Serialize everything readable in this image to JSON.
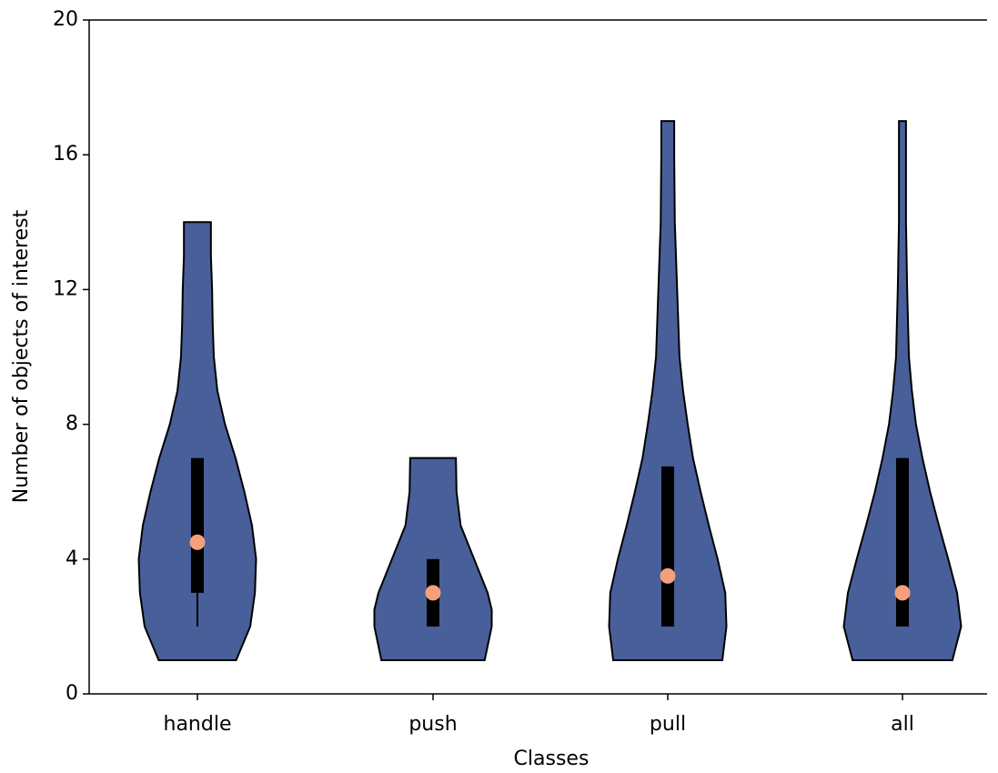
{
  "chart_data": {
    "type": "violin",
    "xlabel": "Classes",
    "ylabel": "Number of objects of interest",
    "categories": [
      "handle",
      "push",
      "pull",
      "all"
    ],
    "ylim": [
      0,
      20
    ],
    "yticks": [
      0,
      4,
      8,
      12,
      16,
      20
    ],
    "color": "#485f99",
    "median_color": "#f5a07a",
    "series": [
      {
        "min": 1,
        "max": 14,
        "q1": 3,
        "q3": 7,
        "median": 4.5,
        "whisker_low": 2,
        "whisker_high": 7,
        "density_y": [
          1,
          2,
          3,
          4,
          5,
          6,
          7,
          8,
          9,
          10,
          11,
          12,
          13,
          14
        ],
        "density": [
          0.66,
          0.9,
          0.98,
          1,
          0.93,
          0.8,
          0.65,
          0.47,
          0.34,
          0.28,
          0.26,
          0.25,
          0.23,
          0.23
        ]
      },
      {
        "min": 1,
        "max": 7,
        "q1": 2,
        "q3": 4,
        "median": 3,
        "whisker_low": 2,
        "whisker_high": 4,
        "density_y": [
          1,
          2,
          2.5,
          3,
          4,
          5,
          6,
          7
        ],
        "density": [
          0.88,
          1,
          1,
          0.93,
          0.7,
          0.47,
          0.4,
          0.39
        ]
      },
      {
        "min": 1,
        "max": 17,
        "q1": 2,
        "q3": 6.75,
        "median": 3.5,
        "whisker_low": 2,
        "whisker_high": 6.75,
        "density_y": [
          1,
          2,
          3,
          4,
          5,
          6,
          7,
          8,
          9,
          10,
          12,
          14,
          16,
          17
        ],
        "density": [
          0.93,
          1,
          0.98,
          0.85,
          0.7,
          0.56,
          0.43,
          0.34,
          0.26,
          0.2,
          0.16,
          0.12,
          0.11,
          0.11
        ]
      },
      {
        "min": 1,
        "max": 17,
        "q1": 2,
        "q3": 7,
        "median": 3,
        "whisker_low": 2,
        "whisker_high": 7,
        "density_y": [
          1,
          2,
          3,
          4,
          5,
          6,
          7,
          8,
          9,
          10,
          12,
          14,
          16,
          17
        ],
        "density": [
          0.85,
          1,
          0.93,
          0.78,
          0.62,
          0.47,
          0.34,
          0.23,
          0.16,
          0.11,
          0.08,
          0.06,
          0.06,
          0.06
        ]
      }
    ]
  }
}
